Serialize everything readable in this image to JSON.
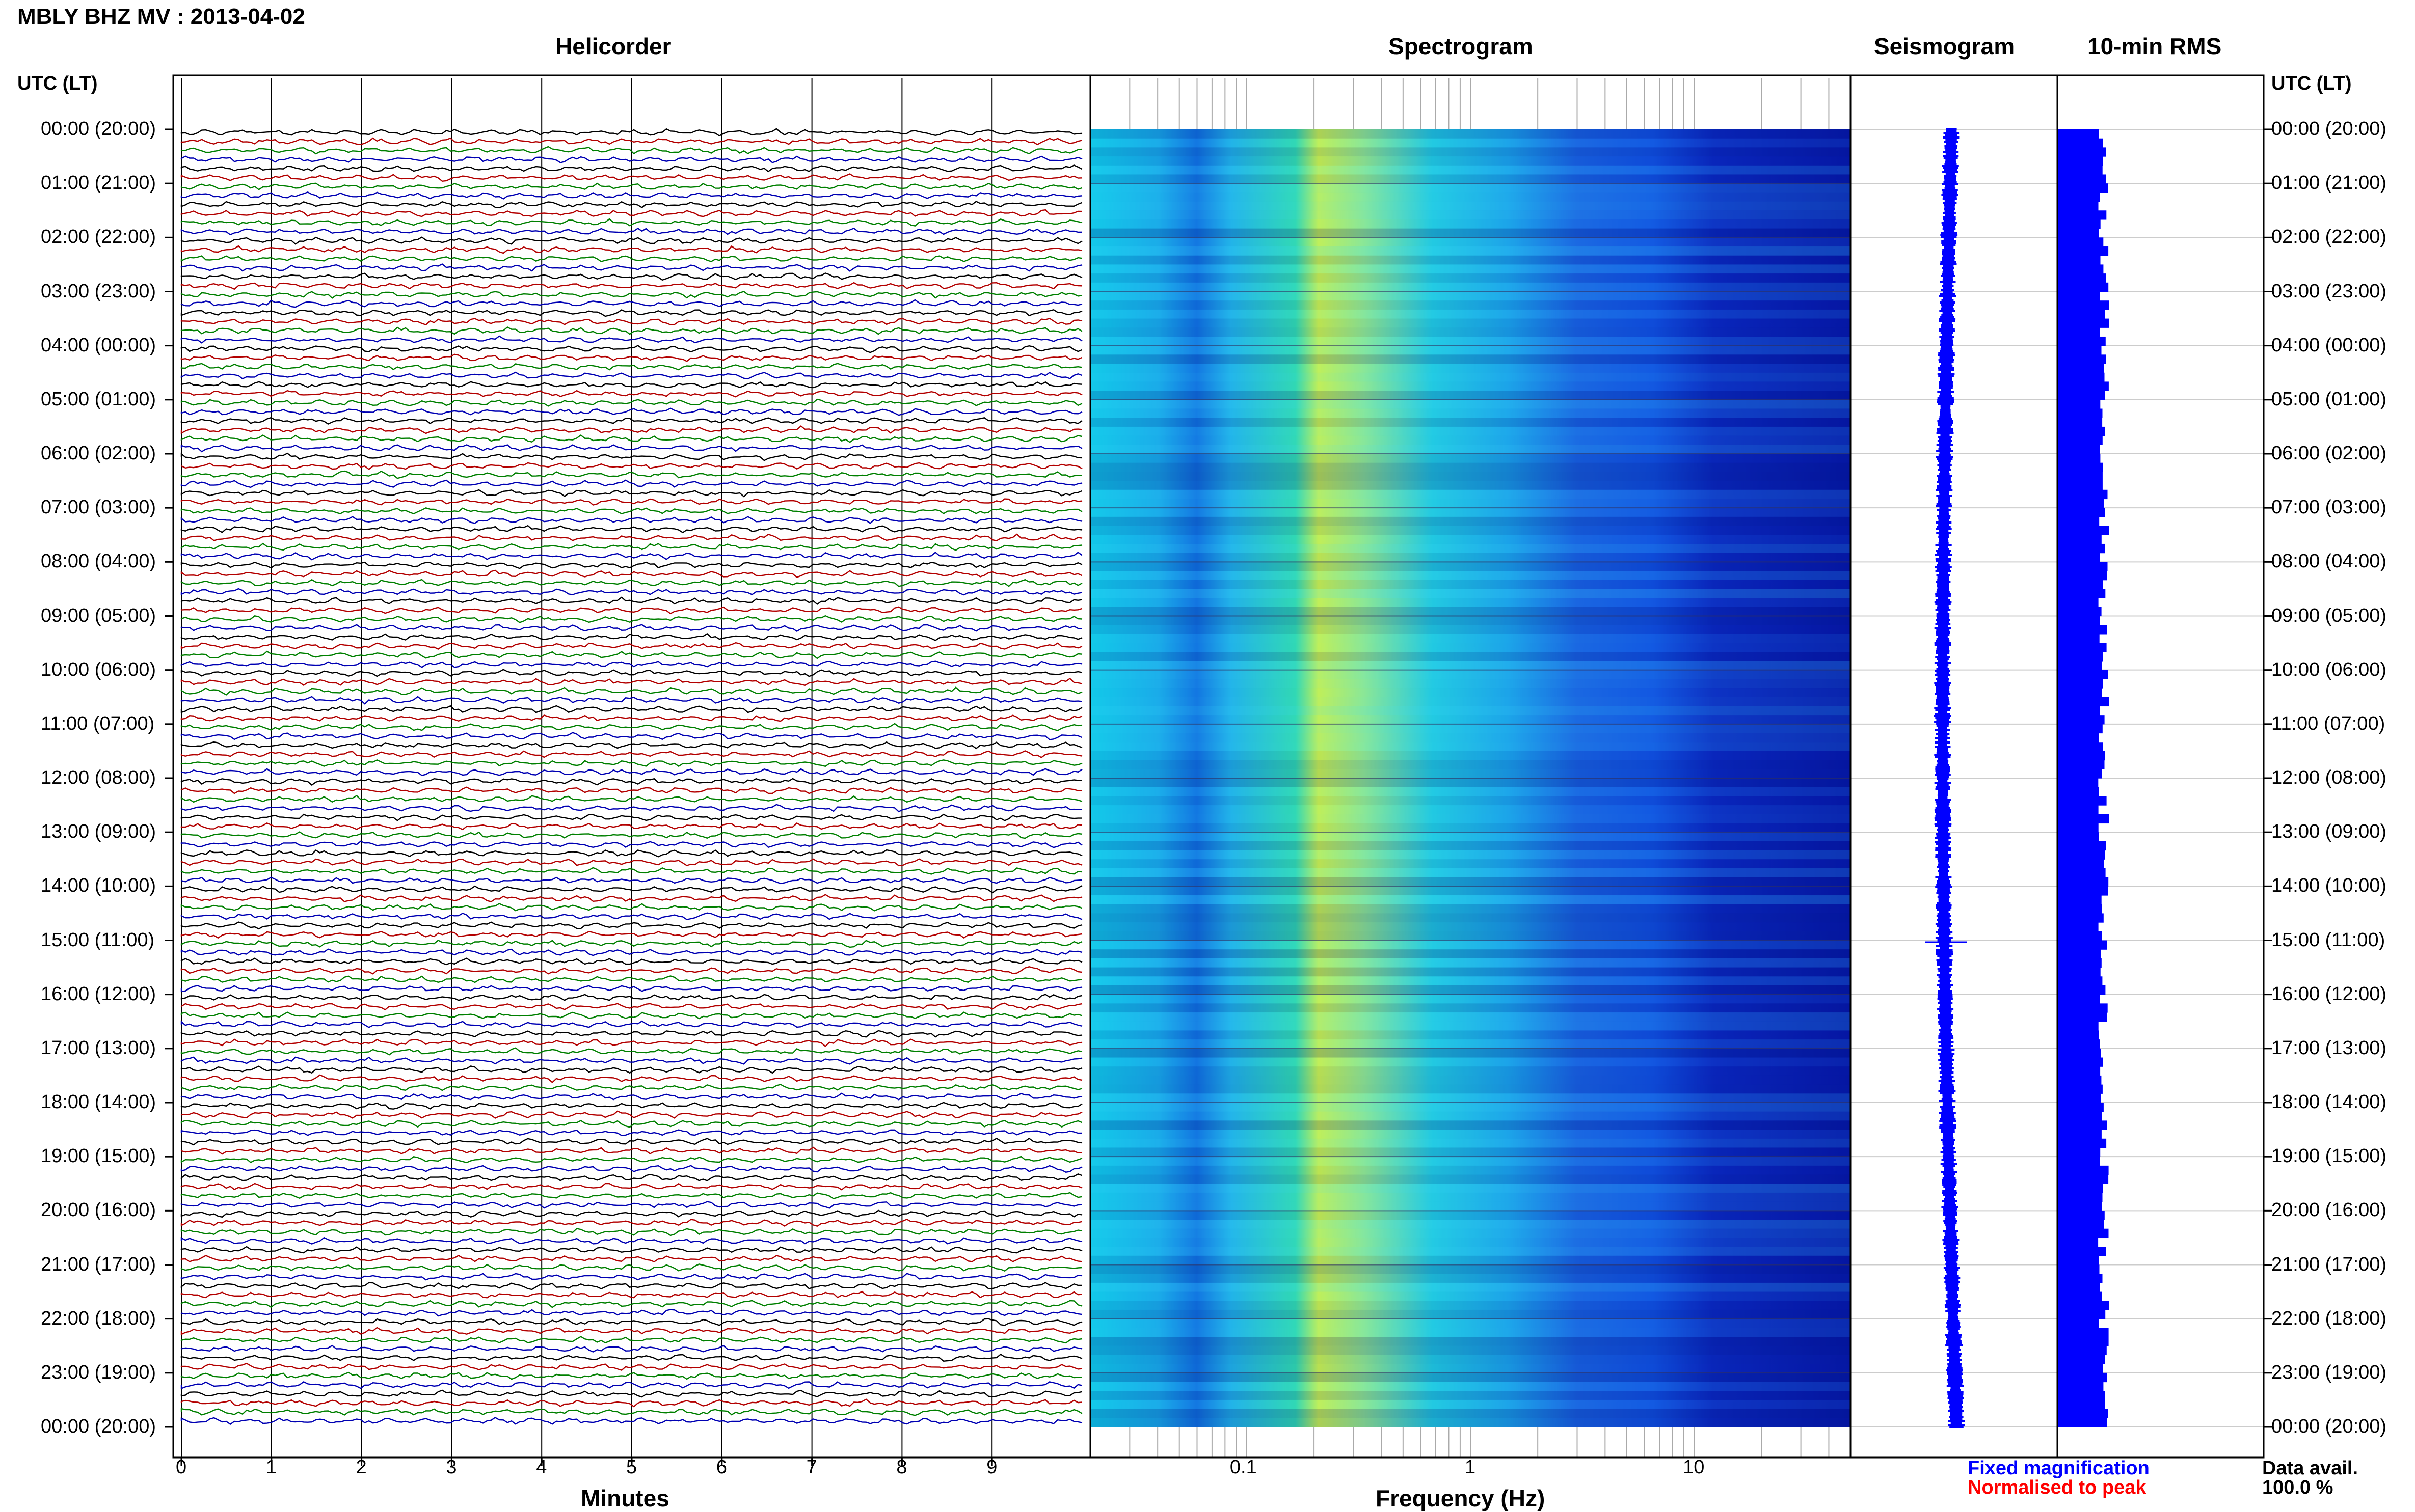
{
  "header": {
    "title": "MBLY BHZ MV : 2013-04-02"
  },
  "panels": {
    "helicorder": "Helicorder",
    "spectrogram": "Spectrogram",
    "seismogram": "Seismogram",
    "rms": "10-min RMS"
  },
  "axis_headers": {
    "left": "UTC (LT)",
    "right": "UTC (LT)"
  },
  "x_axes": {
    "minutes_title": "Minutes",
    "frequency_title": "Frequency (Hz)"
  },
  "legend": {
    "fixed": "Fixed magnification",
    "fixed_color": "#0000ff",
    "normalised": "Normalised to peak",
    "normalised_color": "#ff0000",
    "data_avail_label": "Data avail.",
    "data_avail_value": "100.0 %"
  },
  "colors": {
    "trace_cycle": [
      "#000000",
      "#b30000",
      "#008000",
      "#0000b3"
    ],
    "seismogram": "#0000ff",
    "rms": "#0000ff"
  },
  "chart_data": [
    {
      "type": "line",
      "title": "Helicorder",
      "xlabel": "Minutes",
      "x_ticks": [
        "0",
        "1",
        "2",
        "3",
        "4",
        "5",
        "6",
        "7",
        "8",
        "9"
      ],
      "xlim": [
        0,
        10
      ],
      "y_ticks": [
        "00:00 (20:00)",
        "01:00 (21:00)",
        "02:00 (22:00)",
        "03:00 (23:00)",
        "04:00 (00:00)",
        "05:00 (01:00)",
        "06:00 (02:00)",
        "07:00 (03:00)",
        "08:00 (04:00)",
        "09:00 (05:00)",
        "10:00 (06:00)",
        "11:00 (07:00)",
        "12:00 (08:00)",
        "13:00 (09:00)",
        "14:00 (10:00)",
        "15:00 (11:00)",
        "16:00 (12:00)",
        "17:00 (13:00)",
        "18:00 (14:00)",
        "19:00 (15:00)",
        "20:00 (16:00)",
        "21:00 (17:00)",
        "22:00 (18:00)",
        "23:00 (19:00)",
        "00:00 (20:00)"
      ],
      "traces_per_hour": 6,
      "trace_count": 144
    },
    {
      "type": "heatmap",
      "title": "Spectrogram",
      "xlabel": "Frequency (Hz)",
      "x_scale": "log",
      "xlim": [
        0.02,
        50
      ],
      "x_ticks": [
        "0.1",
        "1",
        "10"
      ]
    },
    {
      "type": "line",
      "title": "Seismogram"
    },
    {
      "type": "bar",
      "title": "10-min RMS",
      "orientation": "horizontal"
    }
  ]
}
